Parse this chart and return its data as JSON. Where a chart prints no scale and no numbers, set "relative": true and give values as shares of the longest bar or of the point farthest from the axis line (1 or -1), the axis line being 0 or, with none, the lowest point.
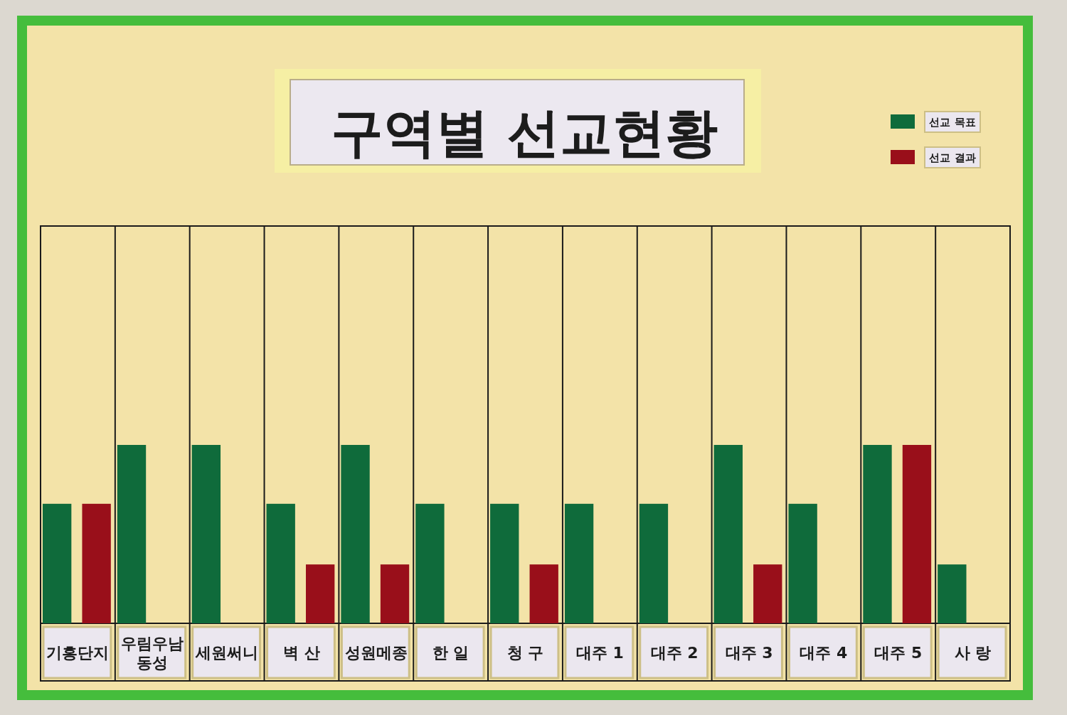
{
  "chart_data": {
    "type": "bar",
    "title": "구역별 선교현황",
    "categories": [
      "기흥단지",
      "우림우남\n동성",
      "세원써니",
      "벽 산",
      "성원메종",
      "한 일",
      "청 구",
      "대주 1",
      "대주 2",
      "대주 3",
      "대주 4",
      "대주 5",
      "사 랑"
    ],
    "series": [
      {
        "name": "선교 목표",
        "color": "#0f6b3b",
        "values": [
          0.67,
          1,
          1,
          0.67,
          1,
          0.67,
          0.67,
          0.67,
          0.67,
          1,
          0.67,
          1,
          0.33
        ]
      },
      {
        "name": "선교 결과",
        "color": "#990f1a",
        "values": [
          0.67,
          0,
          0,
          0.33,
          0.33,
          0,
          0.33,
          0,
          0,
          0.33,
          0,
          1,
          0
        ]
      }
    ],
    "relative": true,
    "grid": "x",
    "legend": "top right"
  }
}
